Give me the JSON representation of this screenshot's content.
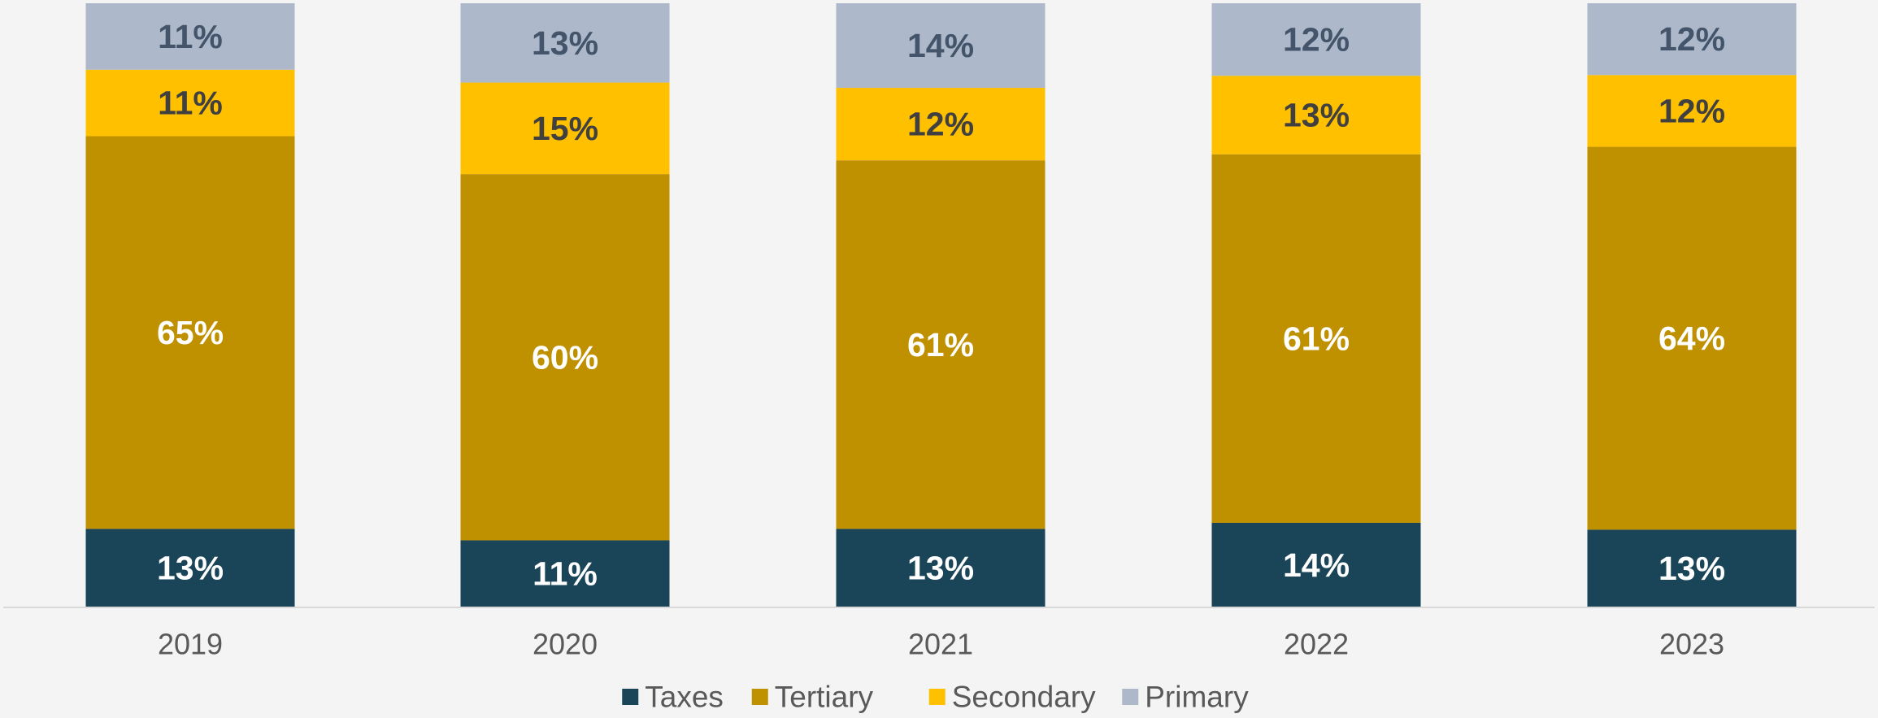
{
  "chart_data": {
    "type": "bar",
    "stacked": true,
    "categories": [
      "2019",
      "2020",
      "2021",
      "2022",
      "2023"
    ],
    "series": [
      {
        "name": "Taxes",
        "values": [
          13,
          11,
          13,
          14,
          13
        ],
        "color": "#1a4558",
        "label_color": "#ffffff"
      },
      {
        "name": "Tertiary",
        "values": [
          65,
          60,
          61,
          61,
          64
        ],
        "color": "#bf9000",
        "label_color": "#ffffff"
      },
      {
        "name": "Secondary",
        "values": [
          11,
          15,
          12,
          13,
          12
        ],
        "color": "#ffc000",
        "label_color": "#404040"
      },
      {
        "name": "Primary",
        "values": [
          11,
          13,
          14,
          12,
          12
        ],
        "color": "#adb9ca",
        "label_color": "#44546a"
      }
    ],
    "data_labels": [
      [
        "13%",
        "11%",
        "13%",
        "14%",
        "13%"
      ],
      [
        "65%",
        "60%",
        "61%",
        "61%",
        "64%"
      ],
      [
        "11%",
        "15%",
        "12%",
        "13%",
        "12%"
      ],
      [
        "11%",
        "13%",
        "14%",
        "12%",
        "12%"
      ]
    ],
    "title": "",
    "xlabel": "",
    "ylabel": "",
    "legend_position": "bottom",
    "grid": false,
    "axis_color": "#d9d9d9"
  }
}
